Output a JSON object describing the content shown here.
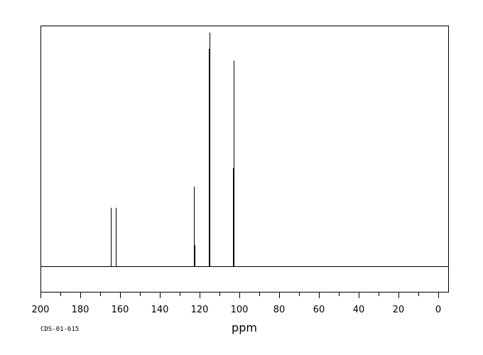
{
  "chart_data": {
    "type": "line",
    "title": "",
    "xlabel": "ppm",
    "ylabel": "",
    "xlim": [
      200,
      -5
    ],
    "ylim": [
      -0.11,
      1.03
    ],
    "x_reversed": true,
    "grid": false,
    "x_ticks_major": [
      200,
      180,
      160,
      140,
      120,
      100,
      80,
      60,
      40,
      20,
      0
    ],
    "x_tick_labels": [
      "200",
      "180",
      "160",
      "140",
      "120",
      "100",
      "80",
      "60",
      "40",
      "20",
      "0"
    ],
    "x_ticks_minor_step": 10,
    "baseline": 0,
    "peaks": [
      {
        "x": 164.6,
        "y": 0.25
      },
      {
        "x": 162.3,
        "y": 0.25
      },
      {
        "x": 122.8,
        "y": 0.34
      },
      {
        "x": 122.5,
        "y": 0.09
      },
      {
        "x": 115.4,
        "y": 0.93
      },
      {
        "x": 115.0,
        "y": 1.0
      },
      {
        "x": 103.1,
        "y": 0.42
      },
      {
        "x": 102.8,
        "y": 0.88
      }
    ],
    "footnote": "CDS-01-615"
  },
  "colors": {
    "line": "#000000",
    "background": "#ffffff"
  }
}
